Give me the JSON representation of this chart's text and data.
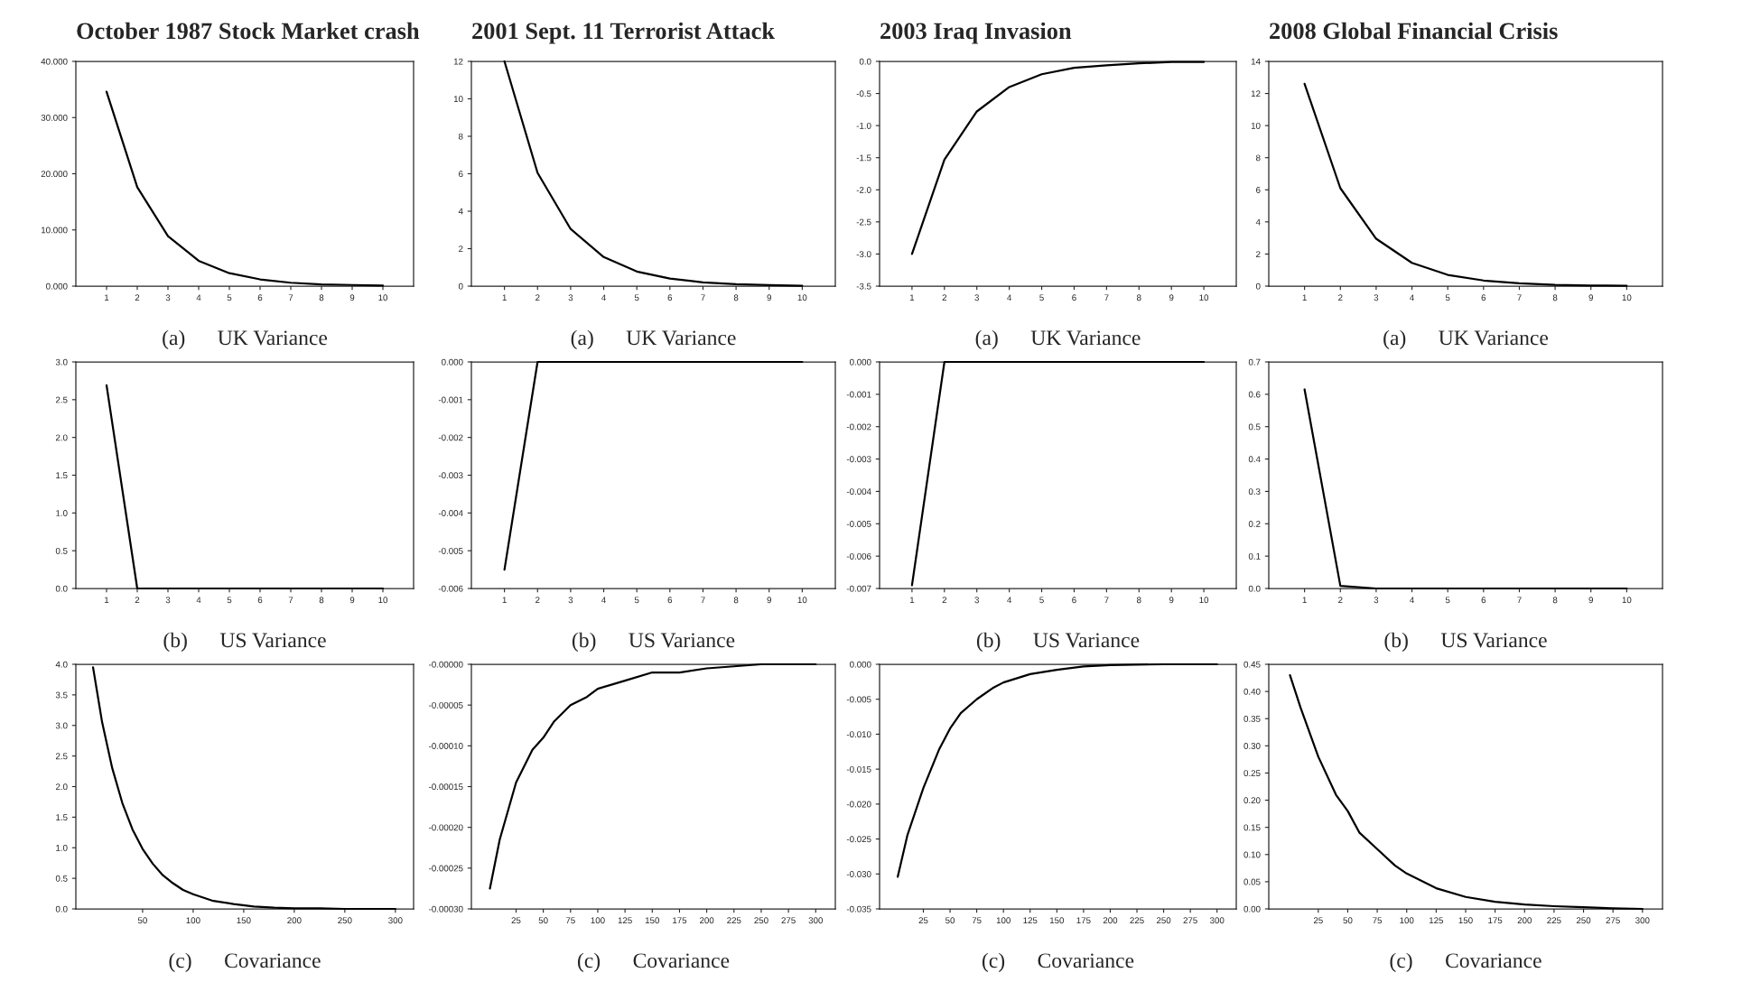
{
  "chart_data": [
    {
      "type": "line",
      "title": "October 1987 Stock Market crash",
      "xlabel": "(a)      UK Variance",
      "x": [
        1,
        2,
        3,
        4,
        5,
        6,
        7,
        8,
        9,
        10
      ],
      "values": [
        34.6,
        17.6,
        8.9,
        4.5,
        2.3,
        1.2,
        0.6,
        0.3,
        0.2,
        0.1
      ],
      "color": "#000000",
      "xlim": [
        0,
        11
      ],
      "ylim": [
        0,
        40
      ],
      "xticks": [
        1,
        2,
        3,
        4,
        5,
        6,
        7,
        8,
        9,
        10
      ],
      "yticks": [
        {
          "value": 0,
          "label": "0.000"
        },
        {
          "value": 10,
          "label": "10.000"
        },
        {
          "value": 20,
          "label": "20.000"
        },
        {
          "value": 30,
          "label": "30.000"
        },
        {
          "value": 40,
          "label": "40.000"
        }
      ]
    },
    {
      "type": "line",
      "title": "2001 Sept. 11 Terrorist Attack",
      "xlabel": "(a)      UK Variance",
      "x": [
        1,
        2,
        3,
        4,
        5,
        6,
        7,
        8,
        9,
        10
      ],
      "values": [
        12.0,
        6.05,
        3.05,
        1.55,
        0.78,
        0.4,
        0.2,
        0.1,
        0.05,
        0.02
      ],
      "color": "#000000",
      "xlim": [
        0,
        11
      ],
      "ylim": [
        0,
        12
      ],
      "xticks": [
        1,
        2,
        3,
        4,
        5,
        6,
        7,
        8,
        9,
        10
      ],
      "yticks": [
        0,
        2,
        4,
        6,
        8,
        10,
        12
      ]
    },
    {
      "type": "line",
      "title": "2003 Iraq Invasion",
      "xlabel": "(a)      UK Variance",
      "x": [
        1,
        2,
        3,
        4,
        5,
        6,
        7,
        8,
        9,
        10
      ],
      "values": [
        -3.0,
        -1.53,
        -0.78,
        -0.4,
        -0.2,
        -0.1,
        -0.06,
        -0.03,
        -0.01,
        -0.01
      ],
      "color": "#000000",
      "xlim": [
        0,
        11
      ],
      "ylim": [
        -3.5,
        0
      ],
      "xticks": [
        1,
        2,
        3,
        4,
        5,
        6,
        7,
        8,
        9,
        10
      ],
      "yticks": [
        {
          "value": -3.5,
          "label": "-3.5"
        },
        {
          "value": -3.0,
          "label": "-3.0"
        },
        {
          "value": -2.5,
          "label": "-2.5"
        },
        {
          "value": -2.0,
          "label": "-2.0"
        },
        {
          "value": -1.5,
          "label": "-1.5"
        },
        {
          "value": -1.0,
          "label": "-1.0"
        },
        {
          "value": -0.5,
          "label": "-0.5"
        },
        {
          "value": 0,
          "label": "0.0"
        }
      ]
    },
    {
      "type": "line",
      "title": "2008 Global Financial Crisis",
      "xlabel": "(a)      UK Variance",
      "x": [
        1,
        2,
        3,
        4,
        5,
        6,
        7,
        8,
        9,
        10
      ],
      "values": [
        12.6,
        6.1,
        2.95,
        1.45,
        0.7,
        0.35,
        0.18,
        0.08,
        0.04,
        0.02
      ],
      "color": "#000000",
      "xlim": [
        0,
        11
      ],
      "ylim": [
        0,
        14
      ],
      "xticks": [
        1,
        2,
        3,
        4,
        5,
        6,
        7,
        8,
        9,
        10
      ],
      "yticks": [
        0,
        2,
        4,
        6,
        8,
        10,
        12,
        14
      ]
    },
    {
      "type": "line",
      "xlabel": "(b)      US Variance",
      "x": [
        1,
        2,
        3,
        4,
        5,
        6,
        7,
        8,
        9,
        10
      ],
      "values": [
        2.69,
        0.0,
        0.0,
        0.0,
        0.0,
        0.0,
        0.0,
        0.0,
        0.0,
        0.0
      ],
      "color": "#000000",
      "xlim": [
        0,
        11
      ],
      "ylim": [
        0,
        3
      ],
      "xticks": [
        1,
        2,
        3,
        4,
        5,
        6,
        7,
        8,
        9,
        10
      ],
      "yticks": [
        {
          "value": 0,
          "label": "0.0"
        },
        {
          "value": 0.5,
          "label": "0.5"
        },
        {
          "value": 1.0,
          "label": "1.0"
        },
        {
          "value": 1.5,
          "label": "1.5"
        },
        {
          "value": 2.0,
          "label": "2.0"
        },
        {
          "value": 2.5,
          "label": "2.5"
        },
        {
          "value": 3.0,
          "label": "3.0"
        }
      ]
    },
    {
      "type": "line",
      "xlabel": "(b)      US Variance",
      "x": [
        1,
        2,
        3,
        4,
        5,
        6,
        7,
        8,
        9,
        10
      ],
      "values": [
        -0.0055,
        0.0,
        0.0,
        0.0,
        0.0,
        0.0,
        0.0,
        0.0,
        0.0,
        0.0
      ],
      "color": "#000000",
      "xlim": [
        0,
        11
      ],
      "ylim": [
        -0.006,
        0
      ],
      "xticks": [
        1,
        2,
        3,
        4,
        5,
        6,
        7,
        8,
        9,
        10
      ],
      "yticks": [
        {
          "value": -0.006,
          "label": "-0.006"
        },
        {
          "value": -0.005,
          "label": "-0.005"
        },
        {
          "value": -0.004,
          "label": "-0.004"
        },
        {
          "value": -0.003,
          "label": "-0.003"
        },
        {
          "value": -0.002,
          "label": "-0.002"
        },
        {
          "value": -0.001,
          "label": "-0.001"
        },
        {
          "value": 0,
          "label": "0.000"
        }
      ]
    },
    {
      "type": "line",
      "xlabel": "(b)      US Variance",
      "x": [
        1,
        2,
        3,
        4,
        5,
        6,
        7,
        8,
        9,
        10
      ],
      "values": [
        -0.0069,
        0.0,
        0.0,
        0.0,
        0.0,
        0.0,
        0.0,
        0.0,
        0.0,
        0.0
      ],
      "color": "#000000",
      "xlim": [
        0,
        11
      ],
      "ylim": [
        -0.007,
        0
      ],
      "xticks": [
        1,
        2,
        3,
        4,
        5,
        6,
        7,
        8,
        9,
        10
      ],
      "yticks": [
        {
          "value": -0.007,
          "label": "-0.007"
        },
        {
          "value": -0.006,
          "label": "-0.006"
        },
        {
          "value": -0.005,
          "label": "-0.005"
        },
        {
          "value": -0.004,
          "label": "-0.004"
        },
        {
          "value": -0.003,
          "label": "-0.003"
        },
        {
          "value": -0.002,
          "label": "-0.002"
        },
        {
          "value": -0.001,
          "label": "-0.001"
        },
        {
          "value": 0,
          "label": "0.000"
        }
      ]
    },
    {
      "type": "line",
      "xlabel": "(b)      US Variance",
      "x": [
        1,
        2,
        3,
        4,
        5,
        6,
        7,
        8,
        9,
        10
      ],
      "values": [
        0.615,
        0.008,
        0.0,
        0.0,
        0.0,
        0.0,
        0.0,
        0.0,
        0.0,
        0.0
      ],
      "color": "#000000",
      "xlim": [
        0,
        11
      ],
      "ylim": [
        0,
        0.7
      ],
      "xticks": [
        1,
        2,
        3,
        4,
        5,
        6,
        7,
        8,
        9,
        10
      ],
      "yticks": [
        {
          "value": 0,
          "label": "0.0"
        },
        {
          "value": 0.1,
          "label": "0.1"
        },
        {
          "value": 0.2,
          "label": "0.2"
        },
        {
          "value": 0.3,
          "label": "0.3"
        },
        {
          "value": 0.4,
          "label": "0.4"
        },
        {
          "value": 0.5,
          "label": "0.5"
        },
        {
          "value": 0.6,
          "label": "0.6"
        },
        {
          "value": 0.7,
          "label": "0.7"
        }
      ]
    },
    {
      "type": "line",
      "xlabel": "(c)      Covariance",
      "x": [
        1,
        10,
        20,
        30,
        40,
        50,
        60,
        70,
        80,
        90,
        100,
        120,
        140,
        160,
        180,
        200,
        225,
        250,
        275,
        300
      ],
      "values": [
        3.95,
        3.05,
        2.3,
        1.73,
        1.3,
        0.98,
        0.74,
        0.55,
        0.42,
        0.31,
        0.24,
        0.13,
        0.08,
        0.04,
        0.02,
        0.01,
        0.01,
        0.0,
        0.0,
        0.0
      ],
      "color": "#000000",
      "xlim": [
        -16,
        318
      ],
      "ylim": [
        0,
        4
      ],
      "xticks": [
        50,
        100,
        150,
        200,
        250,
        300
      ],
      "yticks": [
        {
          "value": 0,
          "label": "0.0"
        },
        {
          "value": 0.5,
          "label": "0.5"
        },
        {
          "value": 1.0,
          "label": "1.0"
        },
        {
          "value": 1.5,
          "label": "1.5"
        },
        {
          "value": 2.0,
          "label": "2.0"
        },
        {
          "value": 2.5,
          "label": "2.5"
        },
        {
          "value": 3.0,
          "label": "3.0"
        },
        {
          "value": 3.5,
          "label": "3.5"
        },
        {
          "value": 4.0,
          "label": "4.0"
        }
      ]
    },
    {
      "type": "line",
      "xlabel": "(c)      Covariance",
      "x": [
        1,
        10,
        25,
        40,
        50,
        60,
        75,
        90,
        100,
        125,
        150,
        175,
        200,
        250,
        300
      ],
      "values": [
        -0.000275,
        -0.000215,
        -0.000145,
        -0.000105,
        -9e-05,
        -7e-05,
        -5e-05,
        -4e-05,
        -3e-05,
        -2e-05,
        -1e-05,
        -1e-05,
        -5e-06,
        0.0,
        0.0
      ],
      "color": "#000000",
      "xlim": [
        -16,
        318
      ],
      "ylim": [
        -0.0003,
        0
      ],
      "xticks": [
        25,
        50,
        75,
        100,
        125,
        150,
        175,
        200,
        225,
        250,
        275,
        300
      ],
      "yticks": [
        {
          "value": -0.0003,
          "label": "-0.00030"
        },
        {
          "value": -0.00025,
          "label": "-0.00025"
        },
        {
          "value": -0.0002,
          "label": "-0.00020"
        },
        {
          "value": -0.00015,
          "label": "-0.00015"
        },
        {
          "value": -0.0001,
          "label": "-0.00010"
        },
        {
          "value": -5e-05,
          "label": "-0.00005"
        },
        {
          "value": 0,
          "label": "-0.00000"
        }
      ]
    },
    {
      "type": "line",
      "xlabel": "(c)      Covariance",
      "x": [
        1,
        10,
        25,
        40,
        50,
        60,
        75,
        90,
        100,
        125,
        150,
        175,
        200,
        250,
        300
      ],
      "values": [
        -0.0304,
        -0.0245,
        -0.0177,
        -0.0121,
        -0.0092,
        -0.007,
        -0.005,
        -0.0034,
        -0.0026,
        -0.0014,
        -0.0008,
        -0.0003,
        -0.0001,
        0.0,
        0.0
      ],
      "color": "#000000",
      "xlim": [
        -16,
        318
      ],
      "ylim": [
        -0.035,
        0
      ],
      "xticks": [
        25,
        50,
        75,
        100,
        125,
        150,
        175,
        200,
        225,
        250,
        275,
        300
      ],
      "yticks": [
        {
          "value": -0.035,
          "label": "-0.035"
        },
        {
          "value": -0.03,
          "label": "-0.030"
        },
        {
          "value": -0.025,
          "label": "-0.025"
        },
        {
          "value": -0.02,
          "label": "-0.020"
        },
        {
          "value": -0.015,
          "label": "-0.015"
        },
        {
          "value": -0.01,
          "label": "-0.010"
        },
        {
          "value": -0.005,
          "label": "-0.005"
        },
        {
          "value": 0,
          "label": "0.000"
        }
      ]
    },
    {
      "type": "line",
      "xlabel": "(c)      Covariance",
      "x": [
        1,
        10,
        25,
        40,
        50,
        60,
        75,
        90,
        100,
        125,
        150,
        175,
        200,
        225,
        250,
        275,
        300
      ],
      "values": [
        0.43,
        0.37,
        0.28,
        0.21,
        0.18,
        0.14,
        0.11,
        0.08,
        0.065,
        0.038,
        0.022,
        0.013,
        0.008,
        0.005,
        0.003,
        0.001,
        0.0
      ],
      "color": "#000000",
      "xlim": [
        -17,
        317
      ],
      "ylim": [
        0,
        0.45
      ],
      "xticks": [
        25,
        50,
        75,
        100,
        125,
        150,
        175,
        200,
        225,
        250,
        275,
        300
      ],
      "yticks": [
        {
          "value": 0,
          "label": "0.00"
        },
        {
          "value": 0.05,
          "label": "0.05"
        },
        {
          "value": 0.1,
          "label": "0.10"
        },
        {
          "value": 0.15,
          "label": "0.15"
        },
        {
          "value": 0.2,
          "label": "0.20"
        },
        {
          "value": 0.25,
          "label": "0.25"
        },
        {
          "value": 0.3,
          "label": "0.30"
        },
        {
          "value": 0.35,
          "label": "0.35"
        },
        {
          "value": 0.4,
          "label": "0.40"
        },
        {
          "value": 0.45,
          "label": "0.45"
        }
      ]
    }
  ]
}
